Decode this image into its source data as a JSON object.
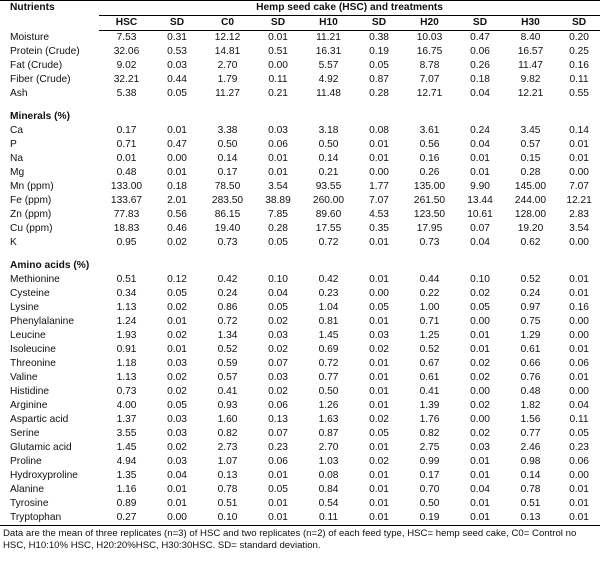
{
  "table": {
    "stub_header": "Nutrients",
    "spanner_header": "Hemp seed cake (HSC) and treatments",
    "columns": [
      "HSC",
      "SD",
      "C0",
      "SD",
      "H10",
      "SD",
      "H20",
      "SD",
      "H30",
      "SD"
    ],
    "groups": [
      {
        "title": "",
        "rows": [
          {
            "label": "Moisture",
            "values": [
              "7.53",
              "0.31",
              "12.12",
              "0.01",
              "11.21",
              "0.38",
              "10.03",
              "0.47",
              "8.40",
              "0.20"
            ]
          },
          {
            "label": "Protein (Crude)",
            "values": [
              "32.06",
              "0.53",
              "14.81",
              "0.51",
              "16.31",
              "0.19",
              "16.75",
              "0.06",
              "16.57",
              "0.25"
            ]
          },
          {
            "label": "Fat (Crude)",
            "values": [
              "9.02",
              "0.03",
              "2.70",
              "0.00",
              "5.57",
              "0.05",
              "8.78",
              "0.26",
              "11.47",
              "0.16"
            ]
          },
          {
            "label": "Fiber (Crude)",
            "values": [
              "32.21",
              "0.44",
              "1.79",
              "0.11",
              "4.92",
              "0.87",
              "7.07",
              "0.18",
              "9.82",
              "0.11"
            ]
          },
          {
            "label": "Ash",
            "values": [
              "5.38",
              "0.05",
              "11.27",
              "0.21",
              "11.48",
              "0.28",
              "12.71",
              "0.04",
              "12.21",
              "0.55"
            ]
          }
        ]
      },
      {
        "title": "Minerals (%)",
        "rows": [
          {
            "label": "Ca",
            "values": [
              "0.17",
              "0.01",
              "3.38",
              "0.03",
              "3.18",
              "0.08",
              "3.61",
              "0.24",
              "3.45",
              "0.14"
            ]
          },
          {
            "label": "P",
            "values": [
              "0.71",
              "0.47",
              "0.50",
              "0.06",
              "0.50",
              "0.01",
              "0.56",
              "0.04",
              "0.57",
              "0.01"
            ]
          },
          {
            "label": "Na",
            "values": [
              "0.01",
              "0.00",
              "0.14",
              "0.01",
              "0.14",
              "0.01",
              "0.16",
              "0.01",
              "0.15",
              "0.01"
            ]
          },
          {
            "label": "Mg",
            "values": [
              "0.48",
              "0.01",
              "0.17",
              "0.01",
              "0.21",
              "0.00",
              "0.26",
              "0.01",
              "0.28",
              "0.00"
            ]
          },
          {
            "label": "Mn (ppm)",
            "values": [
              "133.00",
              "0.18",
              "78.50",
              "3.54",
              "93.55",
              "1.77",
              "135.00",
              "9.90",
              "145.00",
              "7.07"
            ]
          },
          {
            "label": "Fe (ppm)",
            "values": [
              "133.67",
              "2.01",
              "283.50",
              "38.89",
              "260.00",
              "7.07",
              "261.50",
              "13.44",
              "244.00",
              "12.21"
            ]
          },
          {
            "label": "Zn (ppm)",
            "values": [
              "77.83",
              "0.56",
              "86.15",
              "7.85",
              "89.60",
              "4.53",
              "123.50",
              "10.61",
              "128.00",
              "2.83"
            ]
          },
          {
            "label": "Cu (ppm)",
            "values": [
              "18.83",
              "0.46",
              "19.40",
              "0.28",
              "17.55",
              "0.35",
              "17.95",
              "0.07",
              "19.20",
              "3.54"
            ]
          },
          {
            "label": "K",
            "values": [
              "0.95",
              "0.02",
              "0.73",
              "0.05",
              "0.72",
              "0.01",
              "0.73",
              "0.04",
              "0.62",
              "0.00"
            ]
          }
        ]
      },
      {
        "title": "Amino acids (%)",
        "rows": [
          {
            "label": "Methionine",
            "values": [
              "0.51",
              "0.12",
              "0.42",
              "0.10",
              "0.42",
              "0.01",
              "0.44",
              "0.10",
              "0.52",
              "0.01"
            ]
          },
          {
            "label": "Cysteine",
            "values": [
              "0.34",
              "0.05",
              "0.24",
              "0.04",
              "0.23",
              "0.00",
              "0.22",
              "0.02",
              "0.24",
              "0.01"
            ]
          },
          {
            "label": "Lysine",
            "values": [
              "1.13",
              "0.02",
              "0.86",
              "0.05",
              "1.04",
              "0.05",
              "1.00",
              "0.05",
              "0.97",
              "0.16"
            ]
          },
          {
            "label": "Phenylalanine",
            "values": [
              "1.24",
              "0.01",
              "0.72",
              "0.02",
              "0.81",
              "0.01",
              "0.71",
              "0.00",
              "0.75",
              "0.00"
            ]
          },
          {
            "label": "Leucine",
            "values": [
              "1.93",
              "0.02",
              "1.34",
              "0.03",
              "1.45",
              "0.03",
              "1.25",
              "0.01",
              "1.29",
              "0.00"
            ]
          },
          {
            "label": "Isoleucine",
            "values": [
              "0.91",
              "0.01",
              "0.52",
              "0.02",
              "0.69",
              "0.02",
              "0.52",
              "0.01",
              "0.61",
              "0.01"
            ]
          },
          {
            "label": "Threonine",
            "values": [
              "1.18",
              "0.03",
              "0.59",
              "0.07",
              "0.72",
              "0.01",
              "0.67",
              "0.02",
              "0.66",
              "0.06"
            ]
          },
          {
            "label": "Valine",
            "values": [
              "1.13",
              "0.02",
              "0.57",
              "0.03",
              "0.77",
              "0.01",
              "0.61",
              "0.02",
              "0.76",
              "0.01"
            ]
          },
          {
            "label": "Histidine",
            "values": [
              "0.73",
              "0.02",
              "0.41",
              "0.02",
              "0.50",
              "0.01",
              "0.41",
              "0.00",
              "0.48",
              "0.00"
            ]
          },
          {
            "label": "Arginine",
            "values": [
              "4.00",
              "0.05",
              "0.93",
              "0.06",
              "1.26",
              "0.01",
              "1.39",
              "0.02",
              "1.82",
              "0.04"
            ]
          },
          {
            "label": "Aspartic acid",
            "values": [
              "1.37",
              "0.03",
              "1.60",
              "0.13",
              "1.63",
              "0.02",
              "1.76",
              "0.00",
              "1.56",
              "0.11"
            ]
          },
          {
            "label": "Serine",
            "values": [
              "3.55",
              "0.03",
              "0.82",
              "0.07",
              "0.87",
              "0.05",
              "0.82",
              "0.02",
              "0.77",
              "0.05"
            ]
          },
          {
            "label": "Glutamic acid",
            "values": [
              "1.45",
              "0.02",
              "2.73",
              "0.23",
              "2.70",
              "0.01",
              "2.75",
              "0.03",
              "2.46",
              "0.23"
            ]
          },
          {
            "label": "Proline",
            "values": [
              "4.94",
              "0.03",
              "1.07",
              "0.06",
              "1.03",
              "0.02",
              "0.99",
              "0.01",
              "0.98",
              "0.06"
            ]
          },
          {
            "label": "Hydroxyproline",
            "values": [
              "1.35",
              "0.04",
              "0.13",
              "0.01",
              "0.08",
              "0.01",
              "0.17",
              "0.01",
              "0.14",
              "0.00"
            ]
          },
          {
            "label": "Alanine",
            "values": [
              "1.16",
              "0.01",
              "0.78",
              "0.05",
              "0.84",
              "0.01",
              "0.70",
              "0.04",
              "0.78",
              "0.01"
            ]
          },
          {
            "label": "Tyrosine",
            "values": [
              "0.89",
              "0.01",
              "0.51",
              "0.01",
              "0.54",
              "0.01",
              "0.50",
              "0.01",
              "0.51",
              "0.01"
            ]
          },
          {
            "label": "Tryptophan",
            "values": [
              "0.27",
              "0.00",
              "0.10",
              "0.01",
              "0.11",
              "0.01",
              "0.19",
              "0.01",
              "0.13",
              "0.01"
            ]
          }
        ]
      }
    ]
  },
  "footnote": "Data are the mean of three replicates (n=3) of HSC and two replicates (n=2) of each feed type, HSC= hemp seed cake, C0= Control no HSC, H10:10% HSC, H20:20%HSC, H30:30HSC. SD= standard deviation."
}
